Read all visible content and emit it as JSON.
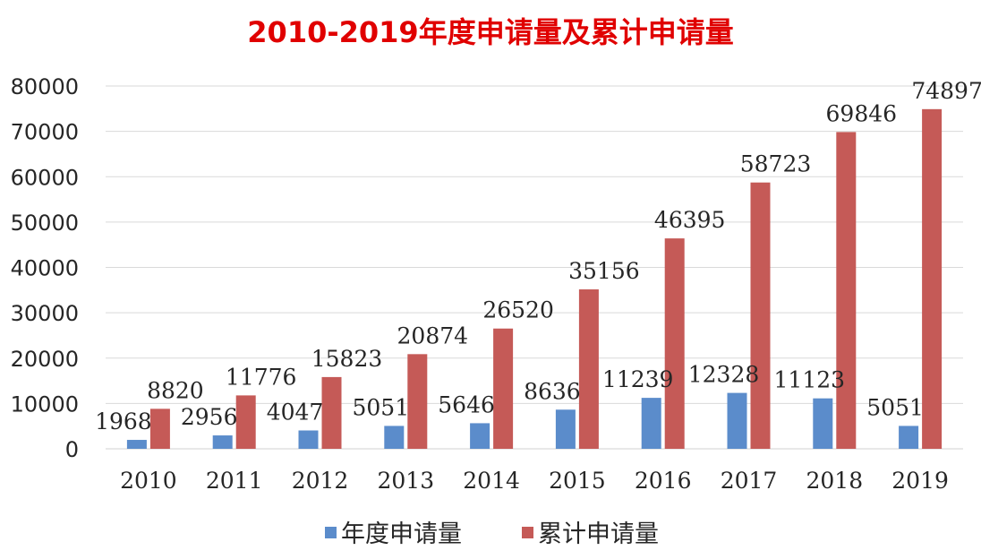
{
  "chart_data": {
    "type": "bar",
    "title": "2010-2019年度申请量及累计申请量",
    "xlabel": "",
    "ylabel": "",
    "ylim": [
      0,
      80000
    ],
    "yticks": [
      0,
      10000,
      20000,
      30000,
      40000,
      50000,
      60000,
      70000,
      80000
    ],
    "grid": true,
    "legend_position": "bottom",
    "categories": [
      "2010",
      "2011",
      "2012",
      "2013",
      "2014",
      "2015",
      "2016",
      "2017",
      "2018",
      "2019"
    ],
    "series": [
      {
        "name": "年度申请量",
        "color": "#5b8ccb",
        "values": [
          1968,
          2956,
          4047,
          5051,
          5646,
          8636,
          11239,
          12328,
          11123,
          5051
        ]
      },
      {
        "name": "累计申请量",
        "color": "#c55a57",
        "values": [
          8820,
          11776,
          15823,
          20874,
          26520,
          35156,
          46395,
          58723,
          69846,
          74897
        ]
      }
    ]
  },
  "colors": {
    "title": "#e00000",
    "gridline": "#d9d9d9",
    "text": "#262626"
  }
}
